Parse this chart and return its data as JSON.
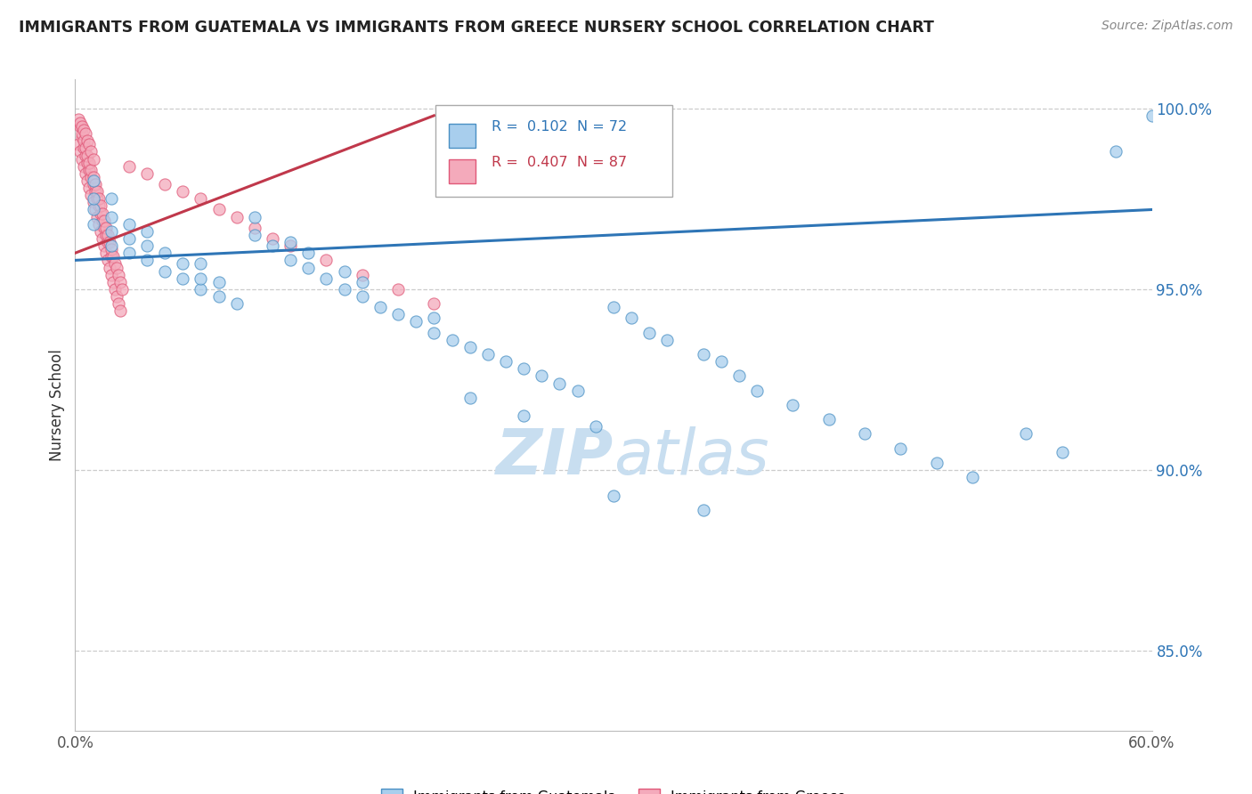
{
  "title": "IMMIGRANTS FROM GUATEMALA VS IMMIGRANTS FROM GREECE NURSERY SCHOOL CORRELATION CHART",
  "source": "Source: ZipAtlas.com",
  "ylabel": "Nursery School",
  "xmin": 0.0,
  "xmax": 0.6,
  "ymin": 0.828,
  "ymax": 1.008,
  "yticks": [
    0.85,
    0.9,
    0.95,
    1.0
  ],
  "ytick_labels": [
    "85.0%",
    "90.0%",
    "95.0%",
    "100.0%"
  ],
  "xticks": [
    0.0,
    0.1,
    0.2,
    0.3,
    0.4,
    0.5,
    0.6
  ],
  "xtick_labels": [
    "0.0%",
    "",
    "",
    "",
    "",
    "",
    "60.0%"
  ],
  "legend_label_blue": "Immigrants from Guatemala",
  "legend_label_pink": "Immigrants from Greece",
  "R_blue": 0.102,
  "N_blue": 72,
  "R_pink": 0.407,
  "N_pink": 87,
  "blue_color": "#A8CEED",
  "pink_color": "#F4AABB",
  "blue_edge_color": "#4A90C4",
  "pink_edge_color": "#E05878",
  "blue_line_color": "#2E75B6",
  "pink_line_color": "#C0384B",
  "watermark_color": "#C8DEF0",
  "blue_scatter_x": [
    0.01,
    0.01,
    0.01,
    0.01,
    0.02,
    0.02,
    0.02,
    0.02,
    0.03,
    0.03,
    0.03,
    0.04,
    0.04,
    0.04,
    0.05,
    0.05,
    0.06,
    0.06,
    0.07,
    0.07,
    0.07,
    0.08,
    0.08,
    0.09,
    0.1,
    0.1,
    0.11,
    0.12,
    0.12,
    0.13,
    0.13,
    0.14,
    0.15,
    0.15,
    0.16,
    0.16,
    0.17,
    0.18,
    0.19,
    0.2,
    0.2,
    0.21,
    0.22,
    0.23,
    0.24,
    0.25,
    0.26,
    0.27,
    0.28,
    0.3,
    0.31,
    0.32,
    0.33,
    0.35,
    0.36,
    0.37,
    0.38,
    0.4,
    0.42,
    0.44,
    0.46,
    0.48,
    0.5,
    0.53,
    0.55,
    0.58,
    0.6,
    0.22,
    0.25,
    0.29,
    0.3,
    0.35
  ],
  "blue_scatter_y": [
    0.968,
    0.972,
    0.975,
    0.98,
    0.962,
    0.966,
    0.97,
    0.975,
    0.96,
    0.964,
    0.968,
    0.958,
    0.962,
    0.966,
    0.955,
    0.96,
    0.953,
    0.957,
    0.95,
    0.953,
    0.957,
    0.948,
    0.952,
    0.946,
    0.965,
    0.97,
    0.962,
    0.958,
    0.963,
    0.956,
    0.96,
    0.953,
    0.95,
    0.955,
    0.948,
    0.952,
    0.945,
    0.943,
    0.941,
    0.938,
    0.942,
    0.936,
    0.934,
    0.932,
    0.93,
    0.928,
    0.926,
    0.924,
    0.922,
    0.945,
    0.942,
    0.938,
    0.936,
    0.932,
    0.93,
    0.926,
    0.922,
    0.918,
    0.914,
    0.91,
    0.906,
    0.902,
    0.898,
    0.91,
    0.905,
    0.988,
    0.998,
    0.92,
    0.915,
    0.912,
    0.893,
    0.889
  ],
  "pink_scatter_x": [
    0.002,
    0.003,
    0.004,
    0.004,
    0.005,
    0.005,
    0.006,
    0.006,
    0.007,
    0.007,
    0.008,
    0.008,
    0.009,
    0.009,
    0.01,
    0.01,
    0.011,
    0.011,
    0.012,
    0.012,
    0.013,
    0.013,
    0.014,
    0.014,
    0.015,
    0.015,
    0.016,
    0.016,
    0.017,
    0.017,
    0.018,
    0.018,
    0.019,
    0.02,
    0.02,
    0.021,
    0.022,
    0.023,
    0.024,
    0.025,
    0.003,
    0.004,
    0.005,
    0.006,
    0.007,
    0.008,
    0.009,
    0.01,
    0.011,
    0.012,
    0.013,
    0.014,
    0.015,
    0.016,
    0.017,
    0.018,
    0.019,
    0.02,
    0.021,
    0.022,
    0.002,
    0.003,
    0.004,
    0.005,
    0.006,
    0.007,
    0.008,
    0.009,
    0.01,
    0.03,
    0.04,
    0.05,
    0.06,
    0.07,
    0.08,
    0.09,
    0.1,
    0.11,
    0.12,
    0.14,
    0.16,
    0.18,
    0.2,
    0.023,
    0.024,
    0.025,
    0.026
  ],
  "pink_scatter_y": [
    0.99,
    0.988,
    0.986,
    0.992,
    0.984,
    0.989,
    0.982,
    0.987,
    0.98,
    0.985,
    0.978,
    0.983,
    0.976,
    0.981,
    0.974,
    0.979,
    0.972,
    0.977,
    0.97,
    0.975,
    0.968,
    0.973,
    0.966,
    0.971,
    0.964,
    0.969,
    0.962,
    0.967,
    0.96,
    0.965,
    0.958,
    0.963,
    0.956,
    0.954,
    0.959,
    0.952,
    0.95,
    0.948,
    0.946,
    0.944,
    0.995,
    0.993,
    0.991,
    0.989,
    0.987,
    0.985,
    0.983,
    0.981,
    0.979,
    0.977,
    0.975,
    0.973,
    0.971,
    0.969,
    0.967,
    0.965,
    0.963,
    0.961,
    0.959,
    0.957,
    0.997,
    0.996,
    0.995,
    0.994,
    0.993,
    0.991,
    0.99,
    0.988,
    0.986,
    0.984,
    0.982,
    0.979,
    0.977,
    0.975,
    0.972,
    0.97,
    0.967,
    0.964,
    0.962,
    0.958,
    0.954,
    0.95,
    0.946,
    0.956,
    0.954,
    0.952,
    0.95
  ],
  "blue_trend_x": [
    0.0,
    0.6
  ],
  "blue_trend_y": [
    0.958,
    0.972
  ],
  "pink_trend_x": [
    0.0,
    0.2
  ],
  "pink_trend_y": [
    0.96,
    0.998
  ]
}
